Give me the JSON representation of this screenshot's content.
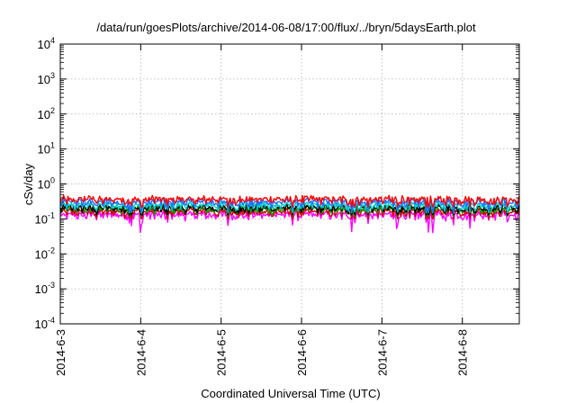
{
  "chart_data": {
    "type": "line",
    "title": "/data/run/goesPlots/archive/2014-06-08/17:00/flux/../bryn/5daysEarth.plot",
    "xlabel": "Coordinated Universal Time (UTC)",
    "ylabel": "cSv/day",
    "x_ticks": [
      "2014-6-3",
      "2014-6-4",
      "2014-6-5",
      "2014-6-6",
      "2014-6-7",
      "2014-6-8"
    ],
    "xlim": [
      "2014-06-03 00:00",
      "2014-06-08 17:00"
    ],
    "x_scale": "time",
    "y_scale": "log",
    "ylim": [
      0.0001,
      10000
    ],
    "y_ticks": [
      {
        "base": "10",
        "exp": "-4"
      },
      {
        "base": "10",
        "exp": "-3"
      },
      {
        "base": "10",
        "exp": "-2"
      },
      {
        "base": "10",
        "exp": "-1"
      },
      {
        "base": "10",
        "exp": "0"
      },
      {
        "base": "10",
        "exp": "1"
      },
      {
        "base": "10",
        "exp": "2"
      },
      {
        "base": "10",
        "exp": "3"
      },
      {
        "base": "10",
        "exp": "4"
      }
    ],
    "grid": true,
    "legend": "none",
    "series": [
      {
        "color": "#ff00ff",
        "typical": 0.13,
        "min": 0.04,
        "max": 0.2
      },
      {
        "color": "#cc0000",
        "typical": 0.16,
        "min": 0.1,
        "max": 0.22
      },
      {
        "color": "#00aa00",
        "typical": 0.19,
        "min": 0.12,
        "max": 0.26
      },
      {
        "color": "#000000",
        "typical": 0.2,
        "min": 0.13,
        "max": 0.27
      },
      {
        "color": "#00cccc",
        "typical": 0.24,
        "min": 0.15,
        "max": 0.32
      },
      {
        "color": "#1f6fff",
        "typical": 0.3,
        "min": 0.14,
        "max": 0.55
      },
      {
        "color": "#ff0000",
        "typical": 0.36,
        "min": 0.22,
        "max": 0.5
      }
    ]
  }
}
